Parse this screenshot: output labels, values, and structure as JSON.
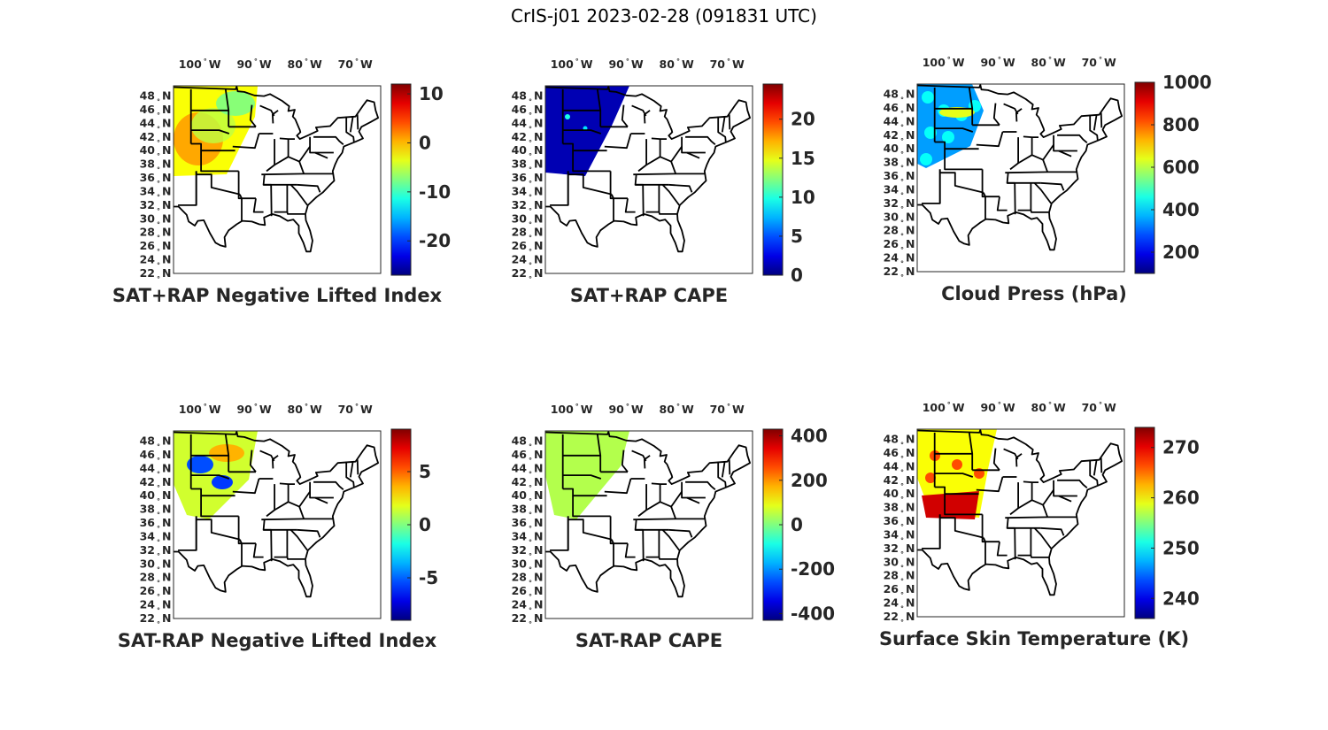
{
  "figure": {
    "title": "CrIS-j01 2023-02-28 (091831 UTC)"
  },
  "lon_ticks": [
    "100",
    "90",
    "80",
    "70"
  ],
  "lon_hemisphere": "W",
  "lat_ticks": [
    "48",
    "46",
    "44",
    "42",
    "40",
    "38",
    "36",
    "34",
    "32",
    "30",
    "28",
    "26",
    "24",
    "22"
  ],
  "lat_hemisphere": "N",
  "degree_symbol": "°",
  "panels": [
    {
      "id": "p1",
      "title": "SAT+RAP Negative Lifted Index",
      "colorbar_ticks": [
        "10",
        "0",
        "-10",
        "-20"
      ],
      "colorbar_range": [
        -27,
        12
      ]
    },
    {
      "id": "p2",
      "title": "SAT+RAP CAPE",
      "colorbar_ticks": [
        "20",
        "15",
        "10",
        "5",
        "0"
      ],
      "colorbar_range": [
        0,
        24.5
      ]
    },
    {
      "id": "p3",
      "title": "Cloud Press (hPa)",
      "colorbar_ticks": [
        "1000",
        "800",
        "600",
        "400",
        "200"
      ],
      "colorbar_range": [
        100,
        1000
      ]
    },
    {
      "id": "p4",
      "title": "SAT-RAP Negative Lifted Index",
      "colorbar_ticks": [
        "5",
        "0",
        "-5"
      ],
      "colorbar_range": [
        -9,
        9
      ]
    },
    {
      "id": "p5",
      "title": "SAT-RAP CAPE",
      "colorbar_ticks": [
        "400",
        "200",
        "0",
        "-200",
        "-400"
      ],
      "colorbar_range": [
        -430,
        430
      ]
    },
    {
      "id": "p6",
      "title": "Surface Skin Temperature (K)",
      "colorbar_ticks": [
        "270",
        "260",
        "250",
        "240"
      ],
      "colorbar_range": [
        236,
        274
      ]
    }
  ],
  "colormap": "jet"
}
